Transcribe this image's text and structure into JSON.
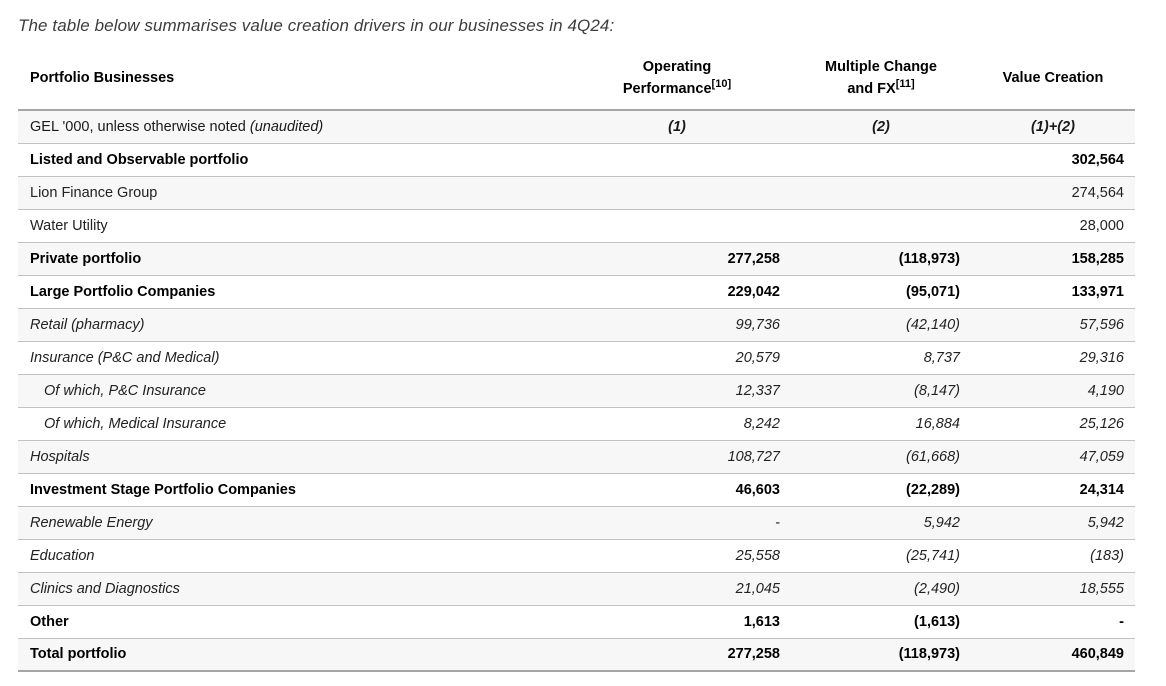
{
  "intro": "The table below summarises value creation drivers in our businesses in 4Q24:",
  "table": {
    "header": {
      "portfolio": "Portfolio Businesses",
      "operating": {
        "line1": "Operating",
        "line2": "Performance",
        "footnote": "[10]"
      },
      "multiple": {
        "line1": "Multiple Change",
        "line2": "and FX",
        "footnote": "[11]"
      },
      "value_creation": "Value Creation"
    },
    "units_row": {
      "label": "GEL '000, unless otherwise noted ",
      "note": "(unaudited)",
      "col1": "(1)",
      "col2": "(2)",
      "col3": "(1)+(2)"
    },
    "rows": [
      {
        "label": "Listed and Observable portfolio",
        "operating": "",
        "multiple_fx": "",
        "value_creation": "302,564",
        "style": "bold",
        "indent": false
      },
      {
        "label": "Lion Finance Group",
        "operating": "",
        "multiple_fx": "",
        "value_creation": "274,564",
        "style": "regular",
        "indent": false
      },
      {
        "label": "Water Utility",
        "operating": "",
        "multiple_fx": "",
        "value_creation": "28,000",
        "style": "regular",
        "indent": false
      },
      {
        "label": "Private portfolio",
        "operating": "277,258",
        "multiple_fx": "(118,973)",
        "value_creation": "158,285",
        "style": "bold",
        "indent": false
      },
      {
        "label": "Large Portfolio Companies",
        "operating": "229,042",
        "multiple_fx": "(95,071)",
        "value_creation": "133,971",
        "style": "bold",
        "indent": false
      },
      {
        "label": "Retail (pharmacy)",
        "operating": "99,736",
        "multiple_fx": "(42,140)",
        "value_creation": "57,596",
        "style": "italic",
        "indent": false
      },
      {
        "label": "Insurance (P&C and Medical)",
        "operating": "20,579",
        "multiple_fx": "8,737",
        "value_creation": "29,316",
        "style": "italic",
        "indent": false
      },
      {
        "label": "Of which, P&C Insurance",
        "operating": "12,337",
        "multiple_fx": "(8,147)",
        "value_creation": "4,190",
        "style": "italic",
        "indent": true
      },
      {
        "label": "Of which, Medical Insurance",
        "operating": "8,242",
        "multiple_fx": "16,884",
        "value_creation": "25,126",
        "style": "italic",
        "indent": true
      },
      {
        "label": "Hospitals",
        "operating": "108,727",
        "multiple_fx": "(61,668)",
        "value_creation": "47,059",
        "style": "italic",
        "indent": false
      },
      {
        "label": "Investment Stage Portfolio Companies",
        "operating": "46,603",
        "multiple_fx": "(22,289)",
        "value_creation": "24,314",
        "style": "bold",
        "indent": false
      },
      {
        "label": "Renewable Energy",
        "operating": "-",
        "multiple_fx": "5,942",
        "value_creation": "5,942",
        "style": "italic",
        "indent": false
      },
      {
        "label": "Education",
        "operating": "25,558",
        "multiple_fx": "(25,741)",
        "value_creation": "(183)",
        "style": "italic",
        "indent": false
      },
      {
        "label": "Clinics and Diagnostics",
        "operating": "21,045",
        "multiple_fx": "(2,490)",
        "value_creation": "18,555",
        "style": "italic",
        "indent": false
      },
      {
        "label": "Other",
        "operating": "1,613",
        "multiple_fx": "(1,613)",
        "value_creation": "-",
        "style": "bold",
        "indent": false
      },
      {
        "label": "Total portfolio",
        "operating": "277,258",
        "multiple_fx": "(118,973)",
        "value_creation": "460,849",
        "style": "bold",
        "indent": false
      }
    ]
  }
}
